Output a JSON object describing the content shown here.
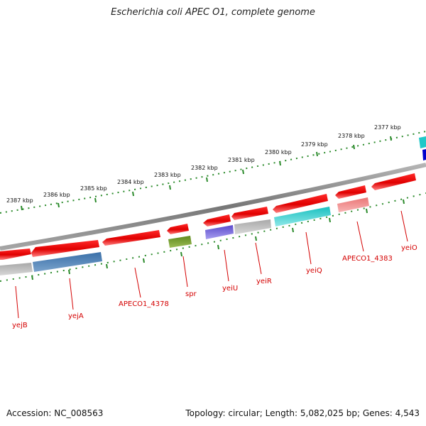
{
  "title": "Escherichia coli APEC O1, complete genome",
  "footer": {
    "accession": "Accession: NC_008563",
    "stats": "Topology: circular; Length: 5,082,025 bp; Genes: 4,543"
  },
  "map": {
    "ticks": [
      "2387 kbp",
      "2386 kbp",
      "2385 kbp",
      "2384 kbp",
      "2383 kbp",
      "2382 kbp",
      "2381 kbp",
      "2380 kbp",
      "2379 kbp",
      "2378 kbp",
      "2377 kbp"
    ],
    "genes": [
      "yejB",
      "yejA",
      "APECO1_4378",
      "spr",
      "yeiU",
      "yeiR",
      "yeiQ",
      "APECO1_4383",
      "yeiO"
    ]
  },
  "colors": {
    "forward_strand": "#ff0000",
    "backbone": "#808080",
    "tick_marks": "#2a8a2a",
    "labels": "#d40000",
    "cog_blue": "#4a7fb5",
    "cog_olive": "#6b8e23",
    "cog_purple": "#6a5acd",
    "cog_gray": "#b0b0b0",
    "cog_cyan": "#20c8c8",
    "cog_pink": "#f08080",
    "cog_darkblue": "#0000cc"
  }
}
